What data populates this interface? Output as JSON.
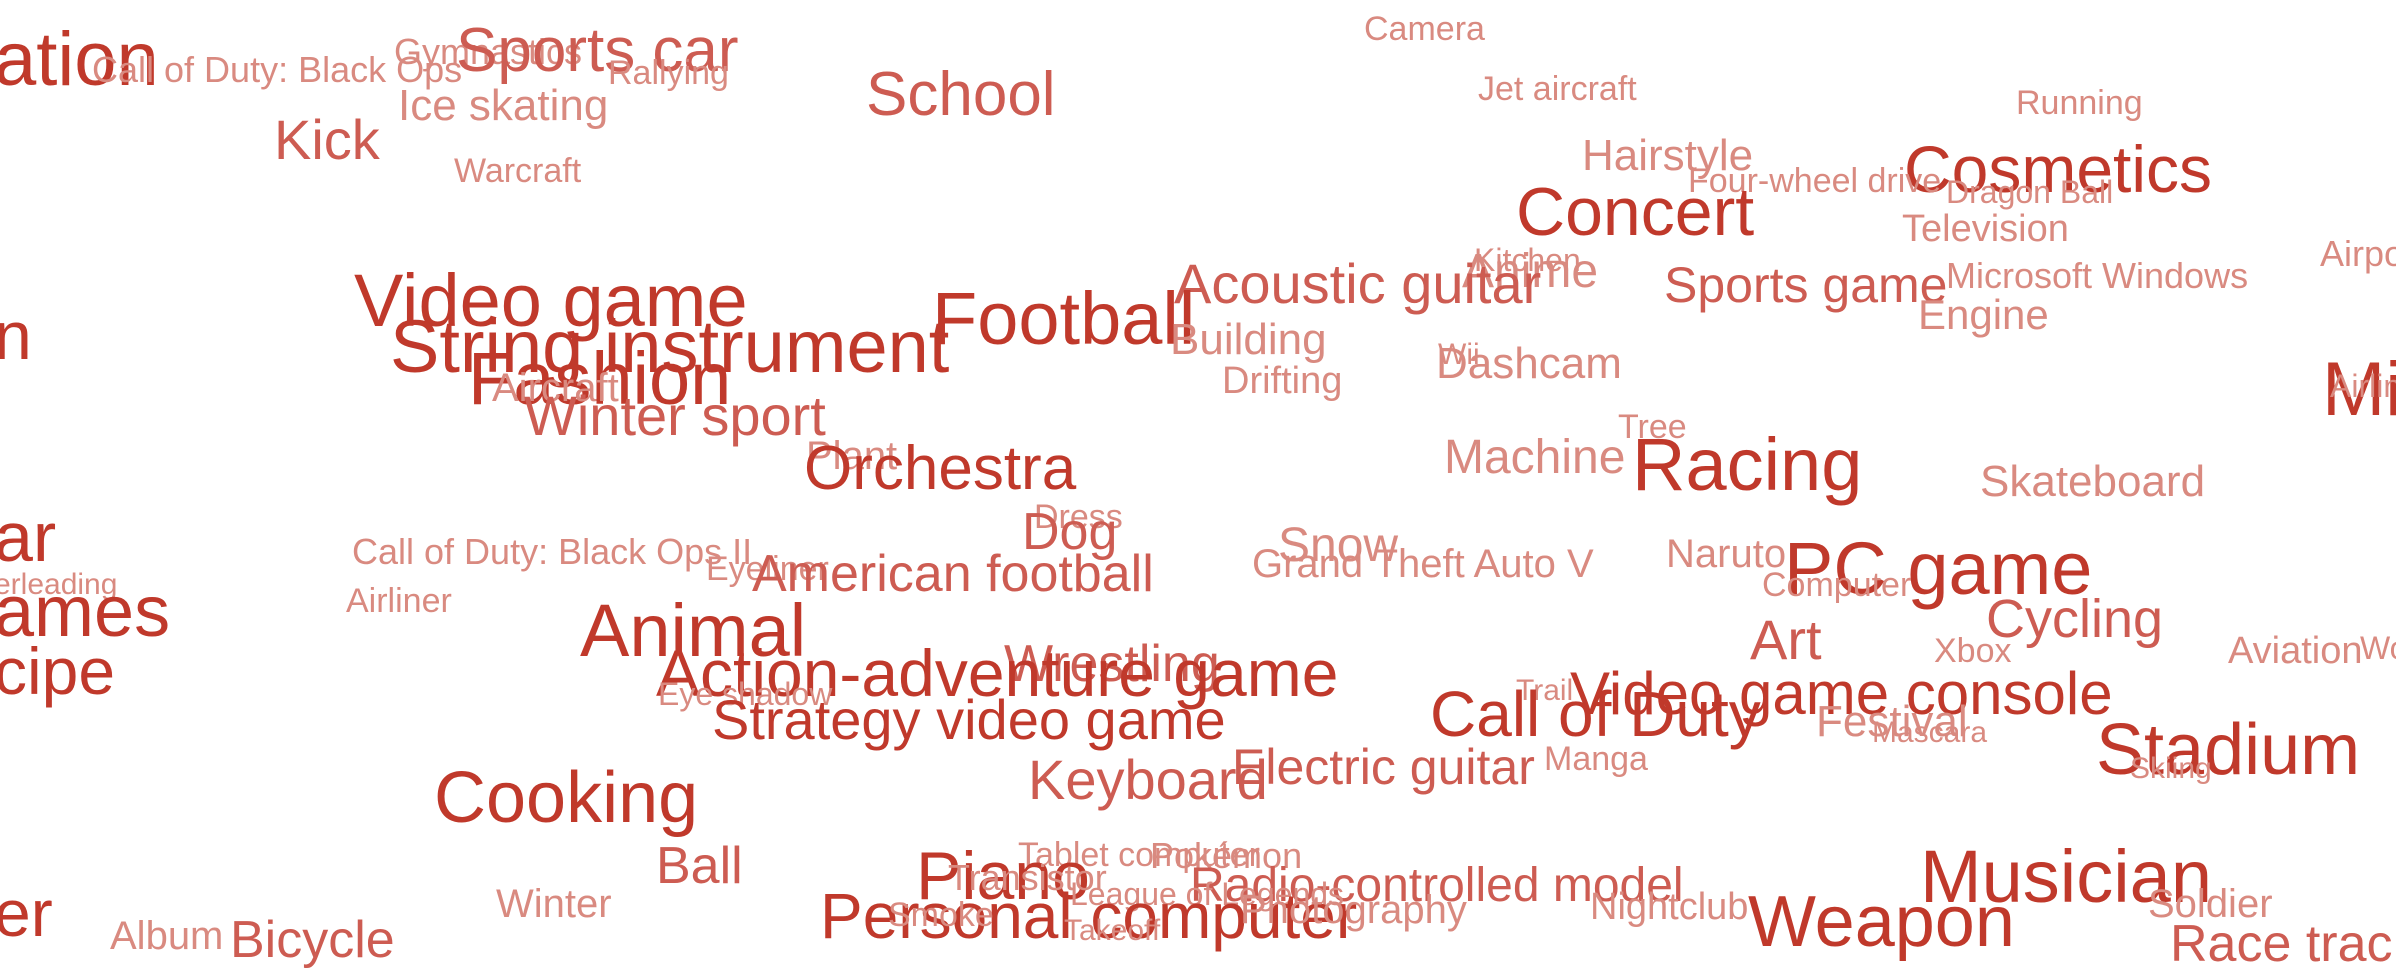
{
  "palette": {
    "strong": "#c0392b",
    "medium": "#cd5c52",
    "light": "#d98a80"
  },
  "words": [
    {
      "text": "ation",
      "w": 3
    },
    {
      "text": "Call of Duty: Black Ops",
      "w": 1
    },
    {
      "text": "Gymnastics",
      "w": 1
    },
    {
      "text": "Sports car",
      "w": 2
    },
    {
      "text": "Rallying",
      "w": 1
    },
    {
      "text": "Ice skating",
      "w": 1
    },
    {
      "text": "School",
      "w": 2
    },
    {
      "text": "Camera",
      "w": 1
    },
    {
      "text": "Jet aircraft",
      "w": 1
    },
    {
      "text": "Running",
      "w": 1
    },
    {
      "text": "Kick",
      "w": 2
    },
    {
      "text": "Hairstyle",
      "w": 1
    },
    {
      "text": "Cosmetics",
      "w": 3
    },
    {
      "text": "Warcraft",
      "w": 1
    },
    {
      "text": "Four-wheel drive",
      "w": 1
    },
    {
      "text": "Dragon Ball",
      "w": 1
    },
    {
      "text": "Concert",
      "w": 3
    },
    {
      "text": "Television",
      "w": 1
    },
    {
      "text": "Kitchen",
      "w": 1
    },
    {
      "text": "Airport",
      "w": 1
    },
    {
      "text": "Anime",
      "w": 1
    },
    {
      "text": "Microsoft Windows",
      "w": 1
    },
    {
      "text": "Video game",
      "w": 3
    },
    {
      "text": "Acoustic guitar",
      "w": 2
    },
    {
      "text": "Sports game",
      "w": 2
    },
    {
      "text": "Football",
      "w": 3
    },
    {
      "text": "Engine",
      "w": 1
    },
    {
      "text": "n",
      "w": 3
    },
    {
      "text": "String instrument",
      "w": 3
    },
    {
      "text": "Building",
      "w": 1
    },
    {
      "text": "Wii",
      "w": 1
    },
    {
      "text": "Dashcam",
      "w": 1
    },
    {
      "text": "Fashion",
      "w": 3
    },
    {
      "text": "Aircraft",
      "w": 1
    },
    {
      "text": "Drifting",
      "w": 1
    },
    {
      "text": "Mi",
      "w": 3
    },
    {
      "text": "Airline",
      "w": 1
    },
    {
      "text": "Winter sport",
      "w": 2
    },
    {
      "text": "Tree",
      "w": 1
    },
    {
      "text": "Plant",
      "w": 1
    },
    {
      "text": "Orchestra",
      "w": 3
    },
    {
      "text": "Machine",
      "w": 1
    },
    {
      "text": "Racing",
      "w": 3
    },
    {
      "text": "Skateboard",
      "w": 1
    },
    {
      "text": "ar",
      "w": 3
    },
    {
      "text": "Dress",
      "w": 1
    },
    {
      "text": "Dog",
      "w": 2
    },
    {
      "text": "Call of Duty: Black Ops II",
      "w": 1
    },
    {
      "text": "Snow",
      "w": 1
    },
    {
      "text": "Naruto",
      "w": 1
    },
    {
      "text": "PC game",
      "w": 3
    },
    {
      "text": "Eyeliner",
      "w": 1
    },
    {
      "text": "American football",
      "w": 2
    },
    {
      "text": "Grand Theft Auto V",
      "w": 1
    },
    {
      "text": "Computer",
      "w": 1
    },
    {
      "text": "erleading",
      "w": 1
    },
    {
      "text": "ames",
      "w": 3
    },
    {
      "text": "Airliner",
      "w": 1
    },
    {
      "text": "Cycling",
      "w": 2
    },
    {
      "text": "Animal",
      "w": 3
    },
    {
      "text": "Art",
      "w": 2
    },
    {
      "text": "Xbox",
      "w": 1
    },
    {
      "text": "Aviation",
      "w": 1
    },
    {
      "text": "Wo",
      "w": 1
    },
    {
      "text": "cipe",
      "w": 3
    },
    {
      "text": "Wrestling",
      "w": 2
    },
    {
      "text": "Action-adventure game",
      "w": 3
    },
    {
      "text": "Trail",
      "w": 1
    },
    {
      "text": "Video game console",
      "w": 3
    },
    {
      "text": "Eye shadow",
      "w": 1
    },
    {
      "text": "Call of Duty",
      "w": 3
    },
    {
      "text": "Strategy video game",
      "w": 3
    },
    {
      "text": "Festival",
      "w": 1
    },
    {
      "text": "Mascara",
      "w": 1
    },
    {
      "text": "Stadium",
      "w": 3
    },
    {
      "text": "Electric guitar",
      "w": 2
    },
    {
      "text": "Manga",
      "w": 1
    },
    {
      "text": "Keyboard",
      "w": 2
    },
    {
      "text": "Skiing",
      "w": 1
    },
    {
      "text": "Cooking",
      "w": 3
    },
    {
      "text": "Tablet computer",
      "w": 1
    },
    {
      "text": "Pokémon",
      "w": 1
    },
    {
      "text": "Ball",
      "w": 2
    },
    {
      "text": "Piano",
      "w": 3
    },
    {
      "text": "Musician",
      "w": 3
    },
    {
      "text": "Transistor",
      "w": 1
    },
    {
      "text": "Radio-controlled model",
      "w": 2
    },
    {
      "text": "Winter",
      "w": 1
    },
    {
      "text": "League of Legends",
      "w": 1
    },
    {
      "text": "Nightclub",
      "w": 1
    },
    {
      "text": "er",
      "w": 3
    },
    {
      "text": "Personal computer",
      "w": 3
    },
    {
      "text": "Photography",
      "w": 1
    },
    {
      "text": "Weapon",
      "w": 3
    },
    {
      "text": "Soldier",
      "w": 1
    },
    {
      "text": "Smoke",
      "w": 1
    },
    {
      "text": "Album",
      "w": 1
    },
    {
      "text": "Bicycle",
      "w": 2
    },
    {
      "text": "Takeoff",
      "w": 1
    },
    {
      "text": "Race track",
      "w": 2
    }
  ]
}
